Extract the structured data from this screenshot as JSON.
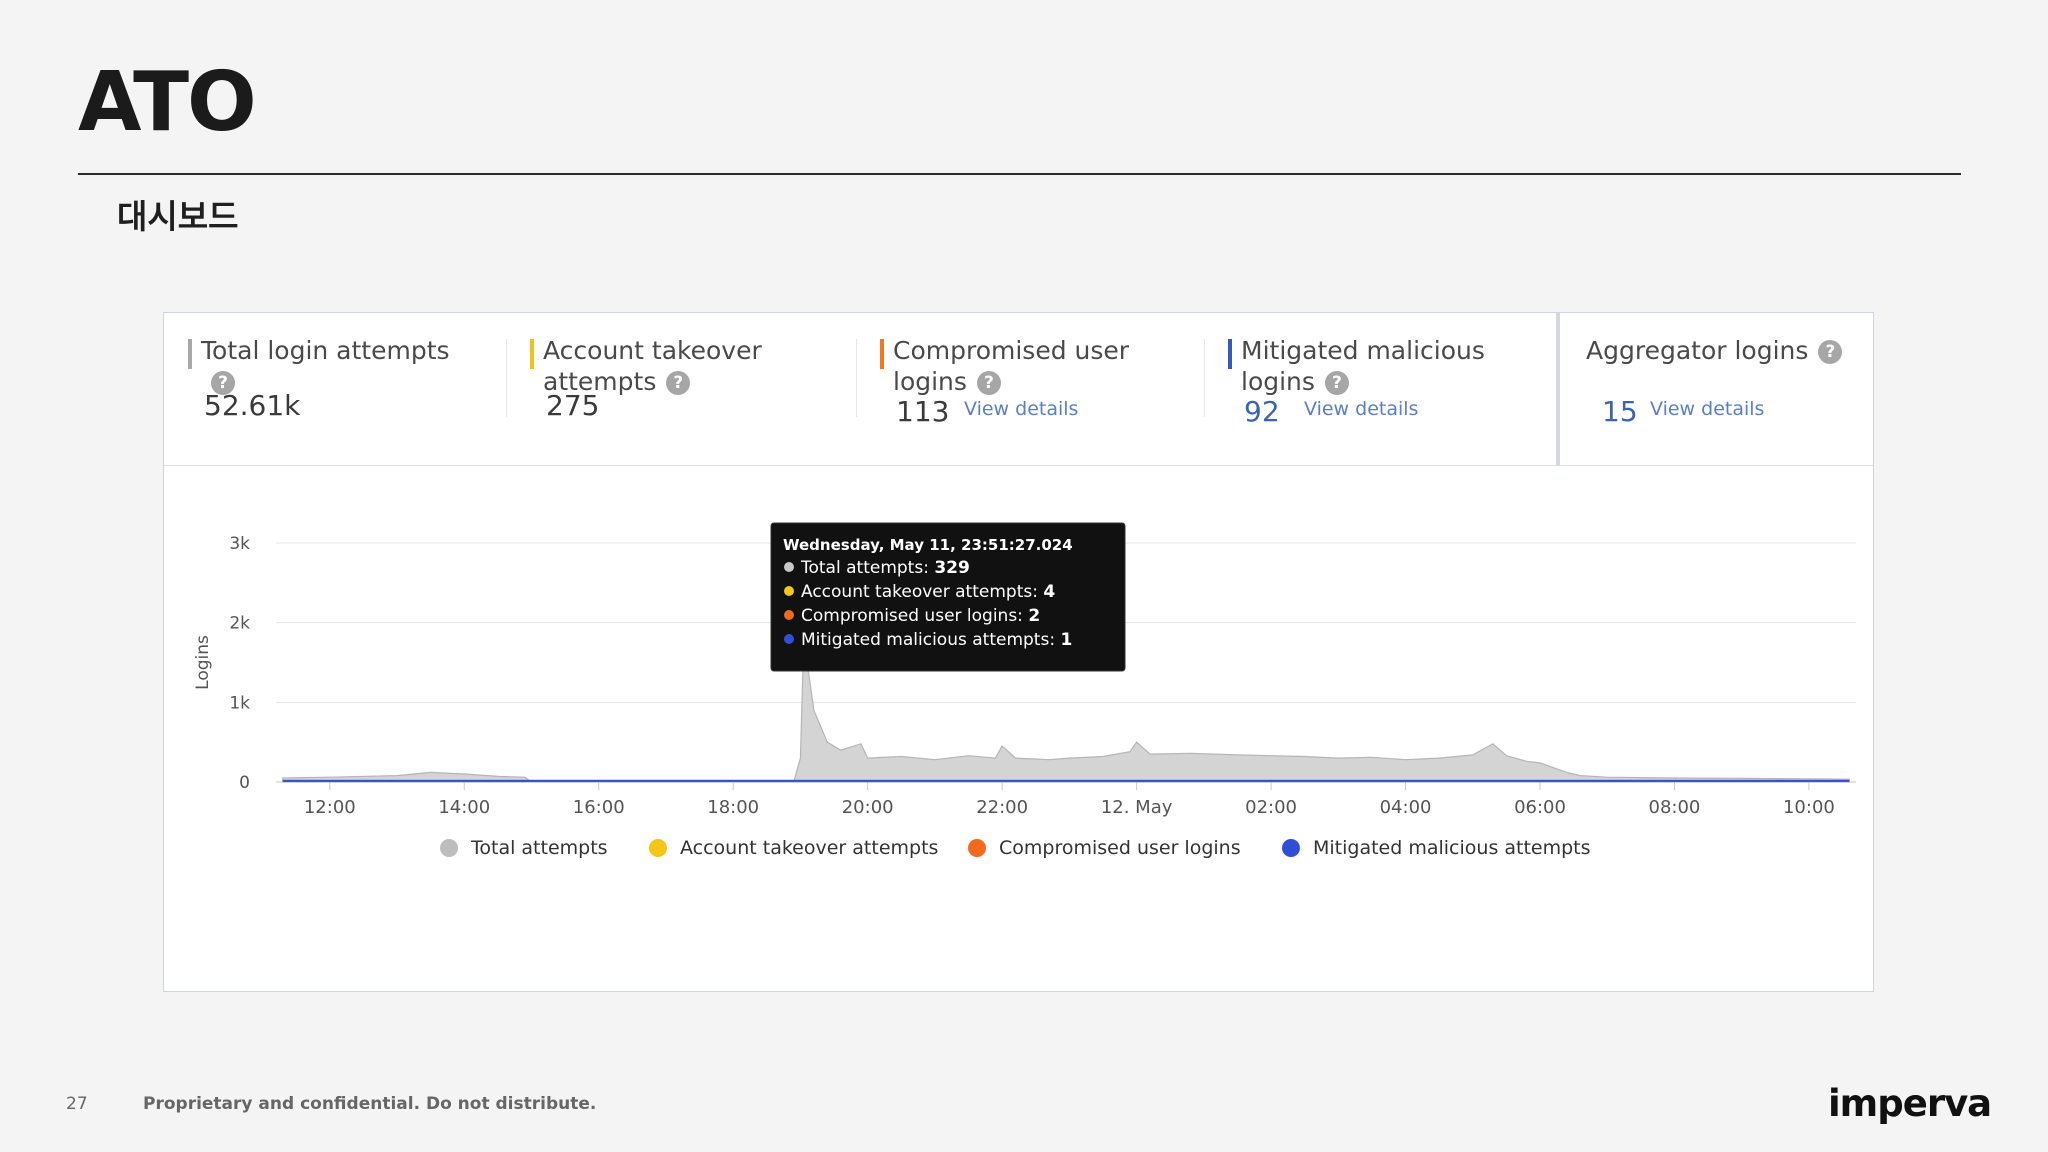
{
  "slide": {
    "title": "ATO",
    "subtitle": "대시보드",
    "page_number": "27",
    "footer_text": "Proprietary and confidential. Do not distribute.",
    "logo_text": "imperva"
  },
  "stats": [
    {
      "label": "Total login attempts",
      "value": "52.61k",
      "accent": "#a9a9a9",
      "link": ""
    },
    {
      "label": "Account takeover attempts",
      "value": "275",
      "accent": "#f2c21b",
      "link": ""
    },
    {
      "label": "Compromised user logins",
      "value": "113",
      "accent": "#f07a22",
      "link": "View details"
    },
    {
      "label": "Mitigated malicious logins",
      "value": "92",
      "accent": "#3858c8",
      "link": "View details"
    },
    {
      "label": "Aggregator logins",
      "value": "15",
      "accent": "",
      "link": "View details"
    }
  ],
  "help_icon_glyph": "?",
  "chart_data": {
    "type": "area",
    "ylabel": "Logins",
    "ylim": [
      0,
      3000
    ],
    "yticks": [
      0,
      1000,
      2000,
      3000
    ],
    "ytick_labels": [
      "0",
      "1k",
      "2k",
      "3k"
    ],
    "xlim_hours": [
      11.2,
      34.7
    ],
    "xticks_hours": [
      12,
      14,
      16,
      18,
      20,
      22,
      24,
      26,
      28,
      30,
      32,
      34
    ],
    "xtick_labels": [
      "12:00",
      "14:00",
      "16:00",
      "18:00",
      "20:00",
      "22:00",
      "12. May",
      "02:00",
      "04:00",
      "06:00",
      "08:00",
      "10:00"
    ],
    "series": [
      {
        "name": "Total attempts",
        "color": "#bdbdbd",
        "points": [
          [
            11.3,
            50
          ],
          [
            12,
            60
          ],
          [
            13,
            80
          ],
          [
            13.5,
            120
          ],
          [
            14,
            100
          ],
          [
            14.5,
            70
          ],
          [
            14.9,
            60
          ],
          [
            15,
            0
          ],
          [
            18.9,
            0
          ],
          [
            19,
            300
          ],
          [
            19.05,
            1800
          ],
          [
            19.2,
            900
          ],
          [
            19.4,
            500
          ],
          [
            19.6,
            400
          ],
          [
            19.9,
            480
          ],
          [
            20,
            300
          ],
          [
            20.5,
            320
          ],
          [
            21,
            280
          ],
          [
            21.5,
            330
          ],
          [
            21.9,
            300
          ],
          [
            22,
            450
          ],
          [
            22.2,
            300
          ],
          [
            22.7,
            280
          ],
          [
            23,
            300
          ],
          [
            23.5,
            320
          ],
          [
            23.9,
            380
          ],
          [
            24,
            500
          ],
          [
            24.2,
            350
          ],
          [
            24.8,
            360
          ],
          [
            25.5,
            340
          ],
          [
            26,
            330
          ],
          [
            26.5,
            320
          ],
          [
            27,
            300
          ],
          [
            27.5,
            310
          ],
          [
            28,
            280
          ],
          [
            28.5,
            300
          ],
          [
            29,
            340
          ],
          [
            29.3,
            480
          ],
          [
            29.5,
            330
          ],
          [
            29.8,
            260
          ],
          [
            30,
            240
          ],
          [
            30.2,
            180
          ],
          [
            30.4,
            120
          ],
          [
            30.6,
            80
          ],
          [
            31,
            60
          ],
          [
            32,
            50
          ],
          [
            33,
            45
          ],
          [
            34,
            40
          ],
          [
            34.6,
            35
          ]
        ]
      },
      {
        "name": "Account takeover attempts",
        "color": "#f5c518",
        "points": [
          [
            11.3,
            2
          ],
          [
            34.6,
            2
          ]
        ]
      },
      {
        "name": "Compromised user logins",
        "color": "#f26a1b",
        "points": [
          [
            11.3,
            1
          ],
          [
            34.6,
            1
          ]
        ]
      },
      {
        "name": "Mitigated malicious attempts",
        "color": "#2f4fd8",
        "points": [
          [
            11.3,
            1
          ],
          [
            34.6,
            1
          ]
        ]
      }
    ],
    "legend_position": "bottom",
    "grid": true,
    "tooltip": {
      "title": "Wednesday, May 11, 23:51:27.024",
      "lines": [
        {
          "label": "Total attempts: ",
          "value": "329",
          "color": "#c8c8c8"
        },
        {
          "label": "Account takeover attempts: ",
          "value": "4",
          "color": "#f5c518"
        },
        {
          "label": "Compromised user logins: ",
          "value": "2",
          "color": "#f26a1b"
        },
        {
          "label": "Mitigated malicious attempts: ",
          "value": "1",
          "color": "#2f4fd8"
        }
      ]
    }
  }
}
